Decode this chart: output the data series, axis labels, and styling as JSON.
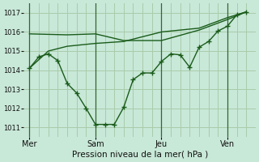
{
  "xlabel": "Pression niveau de la mer( hPa )",
  "ylim": [
    1010.5,
    1017.5
  ],
  "yticks": [
    1011,
    1012,
    1013,
    1014,
    1015,
    1016,
    1017
  ],
  "xtick_labels": [
    "Mer",
    "Sam",
    "Jeu",
    "Ven"
  ],
  "xtick_positions": [
    0,
    3.5,
    7,
    10.5
  ],
  "vline_positions": [
    0,
    3.5,
    7,
    10.5
  ],
  "bg_color": "#c8e8d8",
  "line_color": "#1a5c1a",
  "grid_color": "#aaccaa",
  "line1_x": [
    0,
    0.5,
    1.0,
    1.5,
    2.0,
    2.5,
    3.0,
    3.5,
    4.0,
    4.5,
    5.0,
    5.5,
    6.0,
    6.5,
    7.0,
    7.5,
    8.0,
    8.5,
    9.0,
    9.5,
    10.0,
    10.5,
    11.0,
    11.5
  ],
  "line1_y": [
    1014.1,
    1014.7,
    1014.85,
    1014.5,
    1013.3,
    1012.8,
    1012.0,
    1011.15,
    1011.15,
    1011.15,
    1012.05,
    1013.5,
    1013.85,
    1013.85,
    1014.45,
    1014.85,
    1014.8,
    1014.15,
    1015.2,
    1015.5,
    1016.05,
    1016.3,
    1016.9,
    1017.05
  ],
  "line2_x": [
    0,
    2,
    3.5,
    5,
    7,
    9,
    10.5,
    11.5
  ],
  "line2_y": [
    1015.9,
    1015.85,
    1015.9,
    1015.55,
    1015.55,
    1016.1,
    1016.65,
    1017.05
  ],
  "line3_x": [
    0,
    1,
    2,
    3.5,
    5,
    7,
    9,
    10.5,
    11.5
  ],
  "line3_y": [
    1014.1,
    1015.0,
    1015.25,
    1015.4,
    1015.5,
    1016.0,
    1016.2,
    1016.75,
    1017.05
  ],
  "xlim": [
    -0.3,
    12.0
  ],
  "n_vgrid": 24
}
